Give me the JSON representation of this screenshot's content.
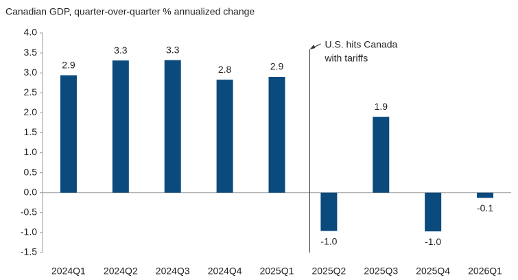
{
  "chart_data": {
    "type": "bar",
    "title": "Canadian GDP, quarter-over-quarter % annualized change",
    "categories": [
      "2024Q1",
      "2024Q2",
      "2024Q3",
      "2024Q4",
      "2025Q1",
      "2025Q2",
      "2025Q3",
      "2025Q4",
      "2026Q1"
    ],
    "values": [
      2.94,
      3.31,
      3.32,
      2.83,
      2.9,
      -0.96,
      1.9,
      -0.97,
      -0.13
    ],
    "value_labels": [
      "2.9",
      "3.3",
      "3.3",
      "2.8",
      "2.9",
      "-1.0",
      "1.9",
      "-1.0",
      "-0.1"
    ],
    "color": "#0b4a7d",
    "ylim": [
      -1.5,
      4.0
    ],
    "yticks": [
      {
        "value": 4.0,
        "label": "4.0"
      },
      3.5,
      {
        "value": 3.0,
        "label": "3.0"
      },
      2.5,
      {
        "value": 2.0,
        "label": "2.0"
      },
      1.5,
      {
        "value": 1.0,
        "label": "1.0"
      },
      0.5,
      {
        "value": 0,
        "label": "0.0"
      },
      -0.5,
      {
        "value": -1.0,
        "label": "-1.0"
      },
      {
        "value": -1.5,
        "label": "-1.5"
      }
    ],
    "grid": false,
    "annotation": [
      "U.S. hits Canada",
      "with tariffs"
    ]
  }
}
